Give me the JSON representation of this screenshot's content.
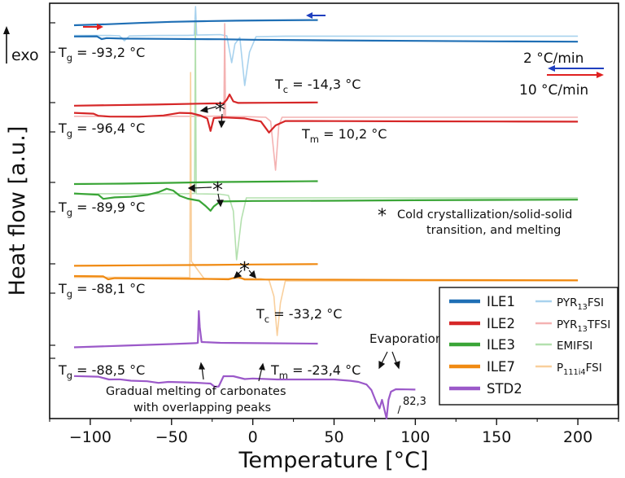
{
  "chart_data": {
    "type": "line",
    "title": "",
    "xlabel": "Temperature [°C]",
    "ylabel": "Heat flow [a.u.]",
    "xlim": [
      -125,
      225
    ],
    "xticks": [
      -100,
      -50,
      0,
      50,
      100,
      150,
      200
    ],
    "exo_label": "exo",
    "rate_labels": {
      "cool": "2 °C/min",
      "heat": "10 °C/min"
    },
    "star_note": [
      "Cold crystallization/solid-solid",
      "transition, and melting"
    ],
    "legend": [
      {
        "name": "ILE1",
        "color": "#1f6fb5"
      },
      {
        "name": "PYR13FSI",
        "base": "PYR",
        "sub": "13",
        "rest": "FSI",
        "color": "#a8d2ee"
      },
      {
        "name": "ILE2",
        "color": "#d62728"
      },
      {
        "name": "PYR13TFSI",
        "base": "PYR",
        "sub": "13",
        "rest": "TFSI",
        "color": "#f4b2b2"
      },
      {
        "name": "ILE3",
        "color": "#3aa537"
      },
      {
        "name": "EMIFSI",
        "base": "EMIFSI",
        "sub": "",
        "rest": "",
        "color": "#b3e0ae"
      },
      {
        "name": "ILE7",
        "color": "#f08a12"
      },
      {
        "name": "P111i4FSI",
        "base": "P",
        "sub": "111i4",
        "rest": "FSI",
        "color": "#f9cf9c"
      },
      {
        "name": "STD2",
        "color": "#9b59c9"
      }
    ],
    "annotations": [
      {
        "id": "ile1_tg",
        "text": "T",
        "sub": "g",
        "rest": " = -93,2 °C"
      },
      {
        "id": "ile1_tc",
        "text": "T",
        "sub": "c",
        "rest": " = -14,3 °C"
      },
      {
        "id": "ile2_tg",
        "text": "T",
        "sub": "g",
        "rest": " = -96,4 °C"
      },
      {
        "id": "ile2_tm",
        "text": "T",
        "sub": "m",
        "rest": " = 10,2 °C"
      },
      {
        "id": "ile3_tg",
        "text": "T",
        "sub": "g",
        "rest": " = -89,9 °C"
      },
      {
        "id": "ile7_tg",
        "text": "T",
        "sub": "g",
        "rest": " = -88,1 °C"
      },
      {
        "id": "std2_tc",
        "text": "T",
        "sub": "c",
        "rest": " = -33,2 °C"
      },
      {
        "id": "std2_tg",
        "text": "T",
        "sub": "g",
        "rest": " = -88,5 °C"
      },
      {
        "id": "std2_tm",
        "text": "T",
        "sub": "m",
        "rest": " = -23,4 °C"
      },
      {
        "id": "evap",
        "text": "Evaporation",
        "sub": "",
        "rest": ""
      },
      {
        "id": "melt1",
        "text": "Gradual melting of carbonates",
        "sub": "",
        "rest": ""
      },
      {
        "id": "melt2",
        "text": "with overlapping peaks",
        "sub": "",
        "rest": ""
      },
      {
        "id": "peak",
        "text": "82,3",
        "sub": "",
        "rest": ""
      }
    ],
    "series": [
      {
        "name": "PYR13FSI",
        "color": "#a8d2ee",
        "width": 1.6,
        "points": [
          [
            -110,
            39.6
          ],
          [
            -88,
            39.6
          ],
          [
            -82,
            40.0
          ],
          [
            -79,
            46.0
          ],
          [
            -76,
            40.2
          ],
          [
            -60,
            39.6
          ],
          [
            -40,
            39.4
          ],
          [
            -36,
            39.2
          ],
          [
            -35.2,
            4
          ],
          [
            -34.5,
            39.0
          ],
          [
            -20,
            38.5
          ],
          [
            -16,
            40.0
          ],
          [
            -13,
            73.0
          ],
          [
            -11,
            50.0
          ],
          [
            -8,
            42.0
          ],
          [
            -5,
            101.0
          ],
          [
            -2,
            60.0
          ],
          [
            2,
            41.0
          ],
          [
            20,
            40.4
          ],
          [
            200,
            40.4
          ]
        ]
      },
      {
        "name": "PYR13TFSI",
        "color": "#f4b2b2",
        "width": 1.6,
        "points": [
          [
            -110,
            138.8
          ],
          [
            -30,
            138.8
          ],
          [
            -20,
            138.5
          ],
          [
            -17.8,
            138.8
          ],
          [
            -17.3,
            25
          ],
          [
            -16.8,
            139.0
          ],
          [
            -5,
            139.2
          ],
          [
            8,
            140.0
          ],
          [
            11,
            145.0
          ],
          [
            14,
            205.0
          ],
          [
            16,
            150.0
          ],
          [
            18,
            140.0
          ],
          [
            200,
            140.0
          ]
        ]
      },
      {
        "name": "EMIFSI",
        "color": "#b3e0ae",
        "width": 1.6,
        "points": [
          [
            -110,
            234.0
          ],
          [
            -40,
            233.8
          ],
          [
            -35.8,
            233.6
          ],
          [
            -35.3,
            22
          ],
          [
            -34.8,
            234.0
          ],
          [
            -20,
            234.5
          ],
          [
            -15,
            236.0
          ],
          [
            -12,
            255.0
          ],
          [
            -10,
            315.0
          ],
          [
            -7,
            265.0
          ],
          [
            -4,
            239.0
          ],
          [
            200,
            239.0
          ]
        ]
      },
      {
        "name": "P111i4FSI",
        "color": "#f9cf9c",
        "width": 1.6,
        "points": [
          [
            -110,
            336.6
          ],
          [
            -45,
            336.6
          ],
          [
            -38.8,
            336.8
          ],
          [
            -38.3,
            85
          ],
          [
            -37.8,
            317.0
          ],
          [
            -30,
            338.0
          ],
          [
            5,
            338.2
          ],
          [
            10,
            340.0
          ],
          [
            13,
            360.0
          ],
          [
            15,
            408.0
          ],
          [
            17,
            368.0
          ],
          [
            20,
            341.0
          ],
          [
            200,
            341.0
          ]
        ]
      },
      {
        "name": "ILE1_cool",
        "color": "#1f6fb5",
        "width": 2.2,
        "points": [
          [
            -110,
            27.0
          ],
          [
            -90,
            25.8
          ],
          [
            -70,
            24.2
          ],
          [
            -50,
            22.8
          ],
          [
            -30,
            22.0
          ],
          [
            -10,
            21.4
          ],
          [
            10,
            21.0
          ],
          [
            40,
            20.6
          ]
        ]
      },
      {
        "name": "ILE1_heat",
        "color": "#1f6fb5",
        "width": 2.2,
        "points": [
          [
            -110,
            40.8
          ],
          [
            -96,
            40.6
          ],
          [
            -93,
            44.0
          ],
          [
            -90,
            42.8
          ],
          [
            -80,
            43.4
          ],
          [
            -50,
            43.8
          ],
          [
            -20,
            44.2
          ],
          [
            0,
            44.8
          ],
          [
            50,
            45.6
          ],
          [
            100,
            46.2
          ],
          [
            150,
            46.8
          ],
          [
            200,
            47.2
          ]
        ]
      },
      {
        "name": "ILE2_cool",
        "color": "#d62728",
        "width": 2.2,
        "points": [
          [
            -110,
            125.8
          ],
          [
            -60,
            124.4
          ],
          [
            -30,
            123.2
          ],
          [
            -18,
            122.8
          ],
          [
            -16,
            118.5
          ],
          [
            -14.3,
            112.0
          ],
          [
            -12,
            120.5
          ],
          [
            -9,
            122.4
          ],
          [
            10,
            122.2
          ],
          [
            40,
            121.8
          ]
        ]
      },
      {
        "name": "ILE2_heat",
        "color": "#d62728",
        "width": 2.2,
        "points": [
          [
            -110,
            134.6
          ],
          [
            -98,
            135.6
          ],
          [
            -95,
            138.2
          ],
          [
            -88,
            139.2
          ],
          [
            -70,
            139.3
          ],
          [
            -55,
            137.8
          ],
          [
            -45,
            134.6
          ],
          [
            -38,
            135.0
          ],
          [
            -32,
            138.0
          ],
          [
            -28,
            141.5
          ],
          [
            -26,
            156.8
          ],
          [
            -24,
            141.0
          ],
          [
            -18,
            140.2
          ],
          [
            -5,
            141.4
          ],
          [
            5,
            145.2
          ],
          [
            10,
            158.8
          ],
          [
            14,
            150.0
          ],
          [
            20,
            144.6
          ],
          [
            50,
            144.7
          ],
          [
            100,
            145.0
          ],
          [
            150,
            145.2
          ],
          [
            200,
            145.4
          ]
        ]
      },
      {
        "name": "ILE3_cool",
        "color": "#3aa537",
        "width": 2.2,
        "points": [
          [
            -110,
            222.0
          ],
          [
            -80,
            221.5
          ],
          [
            -50,
            220.5
          ],
          [
            -20,
            219.5
          ],
          [
            10,
            219.0
          ],
          [
            40,
            218.5
          ]
        ]
      },
      {
        "name": "ILE3_heat",
        "color": "#3aa537",
        "width": 2.2,
        "points": [
          [
            -110,
            233.6
          ],
          [
            -95,
            235.2
          ],
          [
            -92,
            240.2
          ],
          [
            -85,
            238.4
          ],
          [
            -75,
            237.6
          ],
          [
            -65,
            235.4
          ],
          [
            -58,
            232.0
          ],
          [
            -53,
            227.8
          ],
          [
            -49,
            230.0
          ],
          [
            -45,
            236.4
          ],
          [
            -40,
            240.0
          ],
          [
            -33,
            242.5
          ],
          [
            -29,
            249.0
          ],
          [
            -26,
            254.8
          ],
          [
            -24,
            249.5
          ],
          [
            -20,
            243.4
          ],
          [
            0,
            242.8
          ],
          [
            50,
            242.5
          ],
          [
            100,
            241.9
          ],
          [
            150,
            241.5
          ],
          [
            200,
            241.2
          ]
        ]
      },
      {
        "name": "ILE7_cool",
        "color": "#f08a12",
        "width": 2.2,
        "points": [
          [
            -110,
            322.4
          ],
          [
            -70,
            321.8
          ],
          [
            -30,
            321.4
          ],
          [
            0,
            320.8
          ],
          [
            40,
            320.3
          ]
        ]
      },
      {
        "name": "ILE7_heat",
        "color": "#f08a12",
        "width": 2.2,
        "points": [
          [
            -110,
            335.0
          ],
          [
            -92,
            335.4
          ],
          [
            -89,
            339.0
          ],
          [
            -85,
            337.6
          ],
          [
            -60,
            338.0
          ],
          [
            -30,
            338.5
          ],
          [
            -15,
            339.0
          ],
          [
            -9,
            336.0
          ],
          [
            -5,
            339.2
          ],
          [
            50,
            339.5
          ],
          [
            100,
            339.8
          ],
          [
            150,
            340.0
          ],
          [
            200,
            340.2
          ]
        ]
      },
      {
        "name": "STD2_cool",
        "color": "#9b59c9",
        "width": 2.2,
        "points": [
          [
            -110,
            422.5
          ],
          [
            -80,
            420.5
          ],
          [
            -50,
            418.5
          ],
          [
            -35,
            417.4
          ],
          [
            -33.8,
            417.0
          ],
          [
            -33.2,
            378.0
          ],
          [
            -32.6,
            398.0
          ],
          [
            -31.5,
            416.0
          ],
          [
            -20,
            417.0
          ],
          [
            10,
            417.5
          ],
          [
            40,
            418.0
          ]
        ]
      },
      {
        "name": "STD2_heat",
        "color": "#9b59c9",
        "width": 2.2,
        "points": [
          [
            -110,
            457.8
          ],
          [
            -95,
            458.6
          ],
          [
            -88.5,
            462.0
          ],
          [
            -82,
            461.8
          ],
          [
            -75,
            463.5
          ],
          [
            -65,
            464.2
          ],
          [
            -58,
            466.2
          ],
          [
            -52,
            465.0
          ],
          [
            -45,
            465.4
          ],
          [
            -35,
            466.0
          ],
          [
            -26,
            467.0
          ],
          [
            -23.4,
            471.0
          ],
          [
            -21,
            470.6
          ],
          [
            -18,
            458.0
          ],
          [
            -12,
            458.0
          ],
          [
            -5,
            461.5
          ],
          [
            0,
            460.8
          ],
          [
            15,
            462.0
          ],
          [
            30,
            462.0
          ],
          [
            50,
            462.0
          ],
          [
            60,
            463.6
          ],
          [
            65,
            465.0
          ],
          [
            70,
            468.2
          ],
          [
            73,
            475.0
          ],
          [
            76,
            490.0
          ],
          [
            78,
            497.5
          ],
          [
            79.5,
            487.0
          ],
          [
            80.5,
            495.0
          ],
          [
            82.3,
            510.0
          ],
          [
            83.5,
            487.0
          ],
          [
            85,
            477.0
          ],
          [
            88,
            474.0
          ],
          [
            95,
            474.2
          ],
          [
            100,
            474.4
          ]
        ]
      }
    ]
  }
}
